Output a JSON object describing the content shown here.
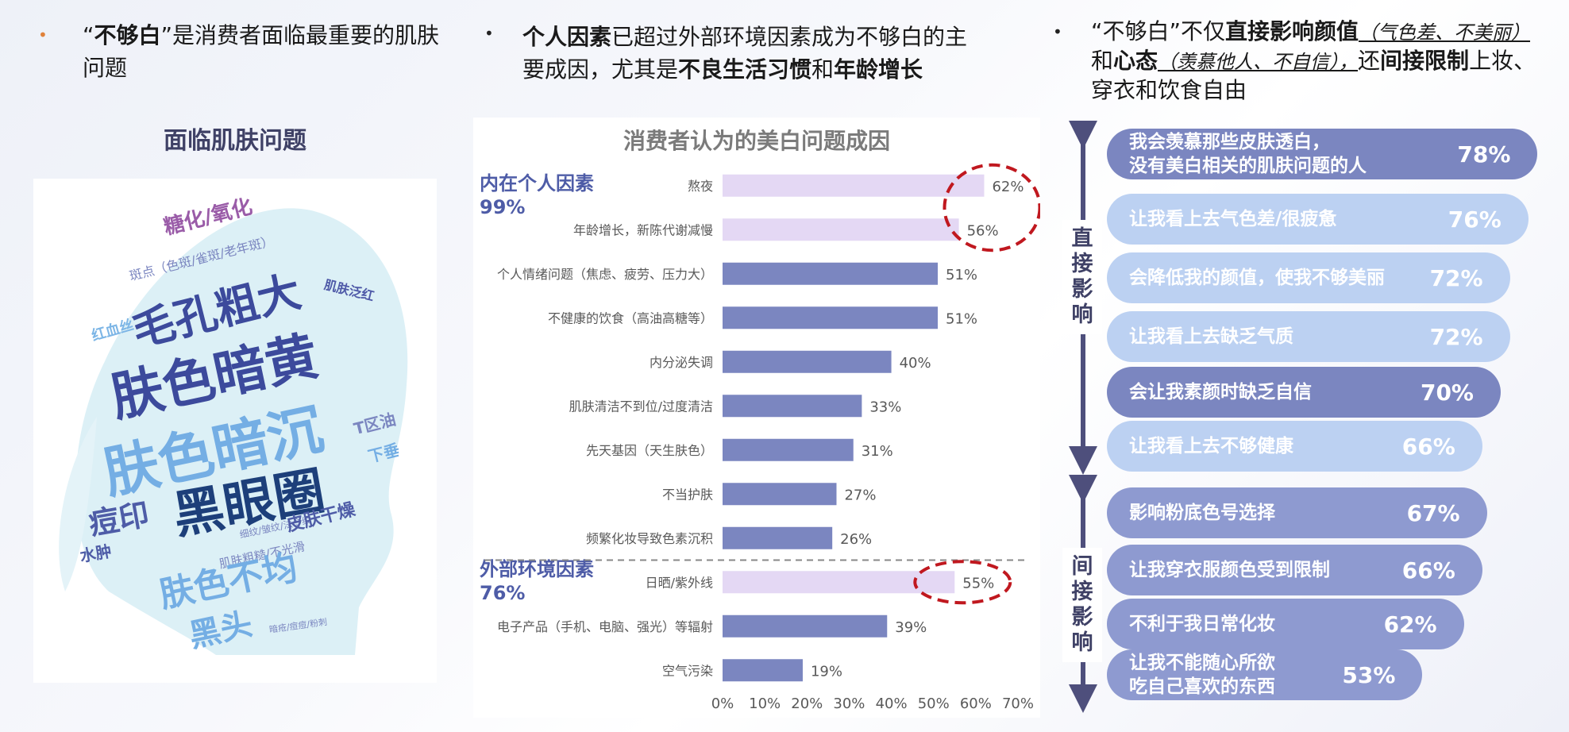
{
  "headlines": {
    "h1": {
      "q1": "“",
      "b1": "不够白",
      "q2": "”",
      "t1": "是消费者面临最重要的肌肤问题"
    },
    "h2": {
      "b1": "个人因素",
      "t1": "已超过外部环境因素成为不够白的主要成因，尤其是",
      "b2": "不良生活习惯",
      "t2": "和",
      "b3": "年龄增长"
    },
    "h3": {
      "t1": "“不够白”不仅",
      "b1": "直接影响颜值",
      "i1": "（气色差、不美丽）",
      "t2": "和",
      "b2": "心态",
      "i2": "（羡慕他人、不自信），",
      "t3": "还",
      "b3": "间接限制",
      "t4": "上妆、穿衣和饮食自由"
    }
  },
  "wordcloud": {
    "title": "面临肌肤问题",
    "words": [
      "糖化/氧化",
      "斑点（色斑/雀斑/老年斑）",
      "毛孔粗大",
      "肌肤泛红",
      "红血丝",
      "肤色暗黄",
      "肤色暗沉",
      "T区油",
      "下垂",
      "痘印",
      "黑眼圈",
      "细纹/皱纹/法令纹",
      "皮肤干燥",
      "水肿",
      "肌肤粗糙/不光滑",
      "肤色不均",
      "黑头",
      "暗疮/痘痘/粉刺"
    ]
  },
  "chart_data": {
    "type": "bar",
    "orientation": "horizontal",
    "title": "消费者认为的美白问题成因",
    "categories": [
      "熬夜",
      "年龄增长，新陈代谢减慢",
      "个人情绪问题（焦虑、疲劳、压力大）",
      "不健康的饮食（高油高糖等）",
      "内分泌失调",
      "肌肤清洁不到位/过度清洁",
      "先天基因（天生肤色）",
      "不当护肤",
      "频繁化妆导致色素沉积",
      "日晒/紫外线",
      "电子产品（手机、电脑、强光）等辐射",
      "空气污染"
    ],
    "values": [
      62,
      56,
      51,
      51,
      40,
      33,
      31,
      27,
      26,
      55,
      39,
      19
    ],
    "value_labels": [
      "62%",
      "56%",
      "51%",
      "51%",
      "40%",
      "33%",
      "31%",
      "27%",
      "26%",
      "55%",
      "39%",
      "19%"
    ],
    "highlighted": [
      true,
      true,
      false,
      false,
      false,
      false,
      false,
      false,
      false,
      true,
      false,
      false
    ],
    "groups": [
      {
        "name": "内在个人因素",
        "pct": "99%",
        "count": 9
      },
      {
        "name": "外部环境因素",
        "pct": "76%",
        "count": 3
      }
    ],
    "xlim": [
      0,
      70
    ],
    "xticks": [
      "0%",
      "10%",
      "20%",
      "30%",
      "40%",
      "50%",
      "60%",
      "70%"
    ],
    "colors": {
      "normal": "#7b86c0",
      "highlight": "#e4d8f4",
      "circle": "#c0181f"
    }
  },
  "impact": {
    "direct_label": "直接影响",
    "indirect_label": "间接影响",
    "direct": [
      {
        "text": "我会羡慕那些皮肤透白，",
        "text2": "没有美白相关的肌肤问题的人",
        "pct": "78%",
        "value": 78,
        "tone": "dark"
      },
      {
        "text": "让我看上去气色差/很疲惫",
        "pct": "76%",
        "value": 76,
        "tone": "light"
      },
      {
        "text": "会降低我的颜值，使我不够美丽",
        "pct": "72%",
        "value": 72,
        "tone": "light"
      },
      {
        "text": "让我看上去缺乏气质",
        "pct": "72%",
        "value": 72,
        "tone": "light"
      },
      {
        "text": "会让我素颜时缺乏自信",
        "pct": "70%",
        "value": 70,
        "tone": "dark"
      },
      {
        "text": "让我看上去不够健康",
        "pct": "66%",
        "value": 66,
        "tone": "light"
      }
    ],
    "indirect": [
      {
        "text": "影响粉底色号选择",
        "pct": "67%",
        "value": 67,
        "tone": "mid"
      },
      {
        "text": "让我穿衣服颜色受到限制",
        "pct": "66%",
        "value": 66,
        "tone": "mid"
      },
      {
        "text": "不利于我日常化妆",
        "pct": "62%",
        "value": 62,
        "tone": "mid"
      },
      {
        "text": "让我不能随心所欲",
        "text2": "吃自己喜欢的东西",
        "pct": "53%",
        "value": 53,
        "tone": "mid"
      }
    ],
    "colors": {
      "dark": "#7b86c0",
      "light": "#bcd1f2",
      "mid": "#8e9ad0",
      "arrow": "#4e4f7c"
    }
  }
}
